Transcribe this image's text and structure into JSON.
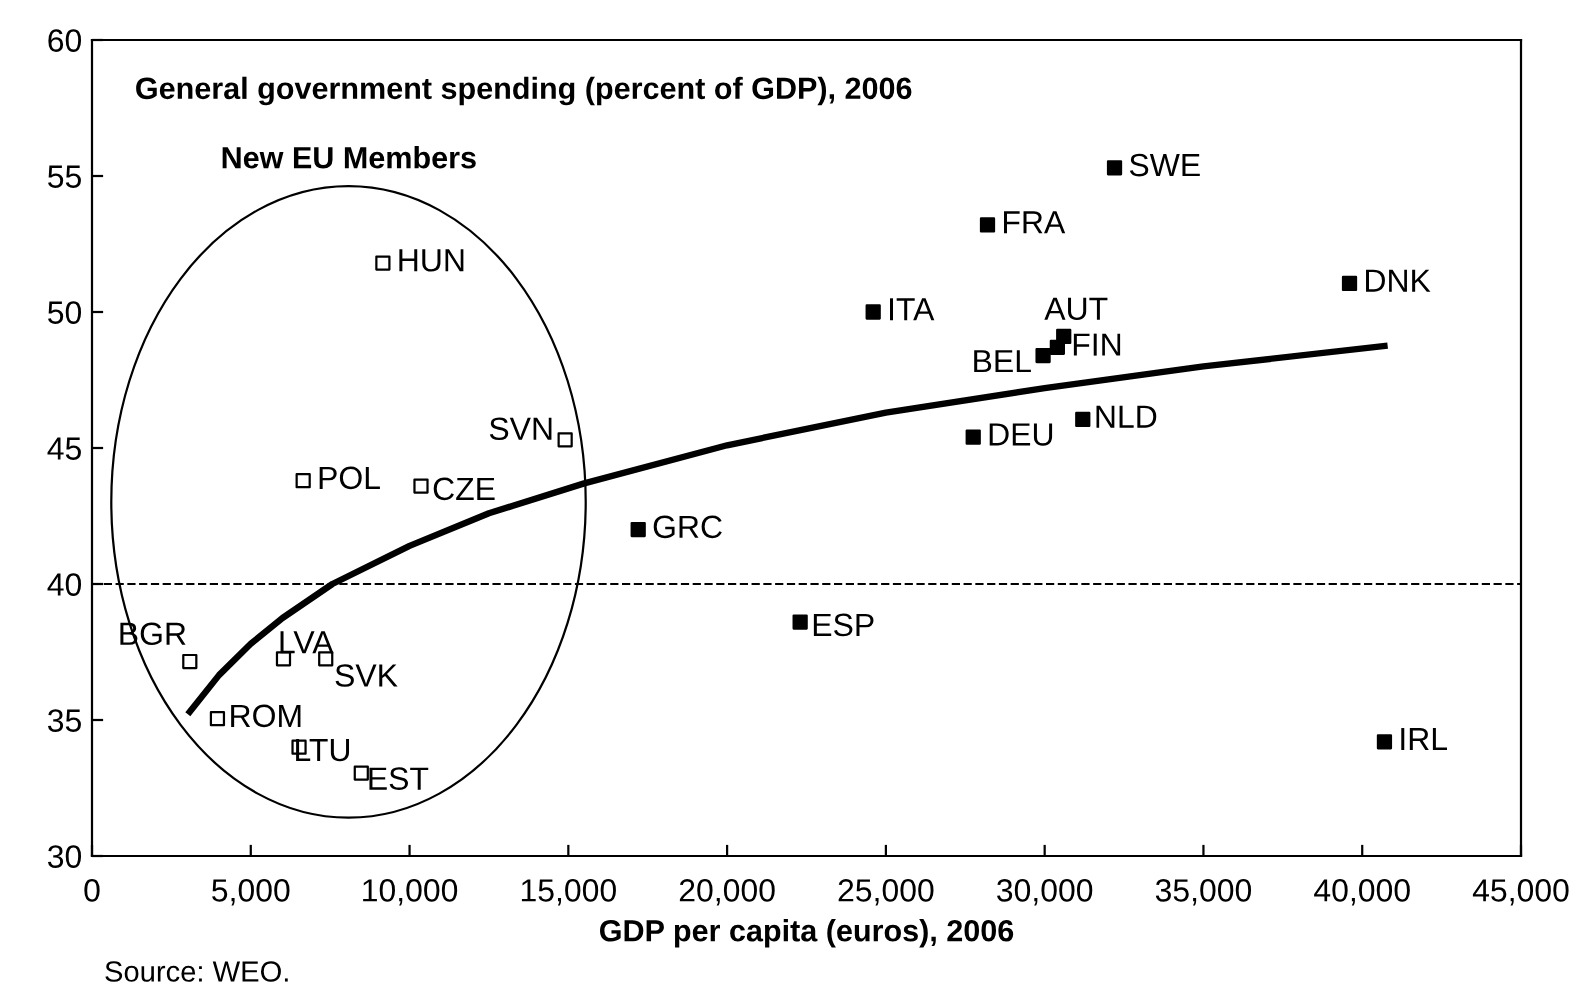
{
  "chart_data": {
    "type": "scatter",
    "title": "General government spending (percent of GDP), 2006",
    "xlabel": "GDP per capita (euros), 2006",
    "series": [
      {
        "color": "#ffffff",
        "x": [
          9160,
          14900,
          6650,
          10360,
          3080,
          6030,
          7360,
          3950,
          6520,
          8480
        ],
        "values": [
          51.8,
          45.3,
          43.8,
          43.6,
          37.15,
          37.25,
          37.25,
          35.05,
          34.0,
          33.05
        ]
      },
      {
        "color": "#000000",
        "x": [
          32200,
          28200,
          24600,
          30600,
          30400,
          29950,
          39600,
          31200,
          27750,
          22300,
          40700,
          17200
        ],
        "values": [
          55.3,
          53.2,
          50.0,
          49.1,
          48.7,
          48.4,
          51.05,
          46.05,
          45.4,
          38.6,
          34.2,
          42.0
        ]
      },
      {
        "type": "line",
        "color": "#000000",
        "marker": "none",
        "x": [
          3080,
          4000,
          5000,
          6000,
          7570,
          10000,
          12500,
          15500,
          20000,
          25000,
          30000,
          35000,
          40700
        ],
        "values": [
          35.3,
          36.65,
          37.8,
          38.75,
          40.0,
          41.4,
          42.6,
          43.7,
          45.1,
          46.3,
          47.2,
          48.0,
          48.75
        ]
      }
    ],
    "marker": "square",
    "xlim": [
      0,
      45000
    ],
    "xticks": [
      0,
      {
        "value": 5000,
        "label": "5,000"
      },
      {
        "value": 10000,
        "label": "10,000"
      },
      {
        "value": 15000,
        "label": "15,000"
      },
      {
        "value": 20000,
        "label": "20,000"
      },
      {
        "value": 25000,
        "label": "25,000"
      },
      {
        "value": 30000,
        "label": "30,000"
      },
      {
        "value": 35000,
        "label": "35,000"
      },
      {
        "value": 40000,
        "label": "40,000"
      },
      {
        "value": 45000,
        "label": "45,000"
      }
    ],
    "ylim": [
      30,
      60
    ],
    "yticks": [
      30,
      35,
      40,
      45,
      50,
      55,
      60
    ],
    "ref_lines": [
      {
        "axis": "y",
        "value": 40,
        "line_style": "dashed",
        "color": "#000000"
      }
    ],
    "grid": false,
    "annotations": [
      {
        "text": "HUN",
        "x": 9160,
        "y": 51.8
      },
      {
        "text": "SVN",
        "x": 14900,
        "y": 45.3
      },
      {
        "text": "POL",
        "x": 6650,
        "y": 43.8
      },
      {
        "text": "CZE",
        "x": 10360,
        "y": 43.6
      },
      {
        "text": "BGR",
        "x": 3080,
        "y": 37.15
      },
      {
        "text": "LVA",
        "x": 6030,
        "y": 37.25
      },
      {
        "text": "SVK",
        "x": 7360,
        "y": 37.25
      },
      {
        "text": "ROM",
        "x": 3950,
        "y": 35.05
      },
      {
        "text": "LTU",
        "x": 6520,
        "y": 34.0
      },
      {
        "text": "EST",
        "x": 8480,
        "y": 33.05
      },
      {
        "text": "SWE",
        "x": 32200,
        "y": 55.3
      },
      {
        "text": "FRA",
        "x": 28200,
        "y": 53.2
      },
      {
        "text": "ITA",
        "x": 24600,
        "y": 50.0
      },
      {
        "text": "AUT",
        "x": 30600,
        "y": 49.1
      },
      {
        "text": "FIN",
        "x": 30400,
        "y": 48.7
      },
      {
        "text": "BEL",
        "x": 29950,
        "y": 48.4
      },
      {
        "text": "DNK",
        "x": 39600,
        "y": 51.05
      },
      {
        "text": "NLD",
        "x": 31200,
        "y": 46.05
      },
      {
        "text": "DEU",
        "x": 27750,
        "y": 45.4
      },
      {
        "text": "ESP",
        "x": 22300,
        "y": 38.6
      },
      {
        "text": "IRL",
        "x": 40700,
        "y": 34.2
      },
      {
        "text": "GRC",
        "x": 17200,
        "y": 42.0
      },
      "New EU Members",
      "Source: WEO."
    ]
  }
}
